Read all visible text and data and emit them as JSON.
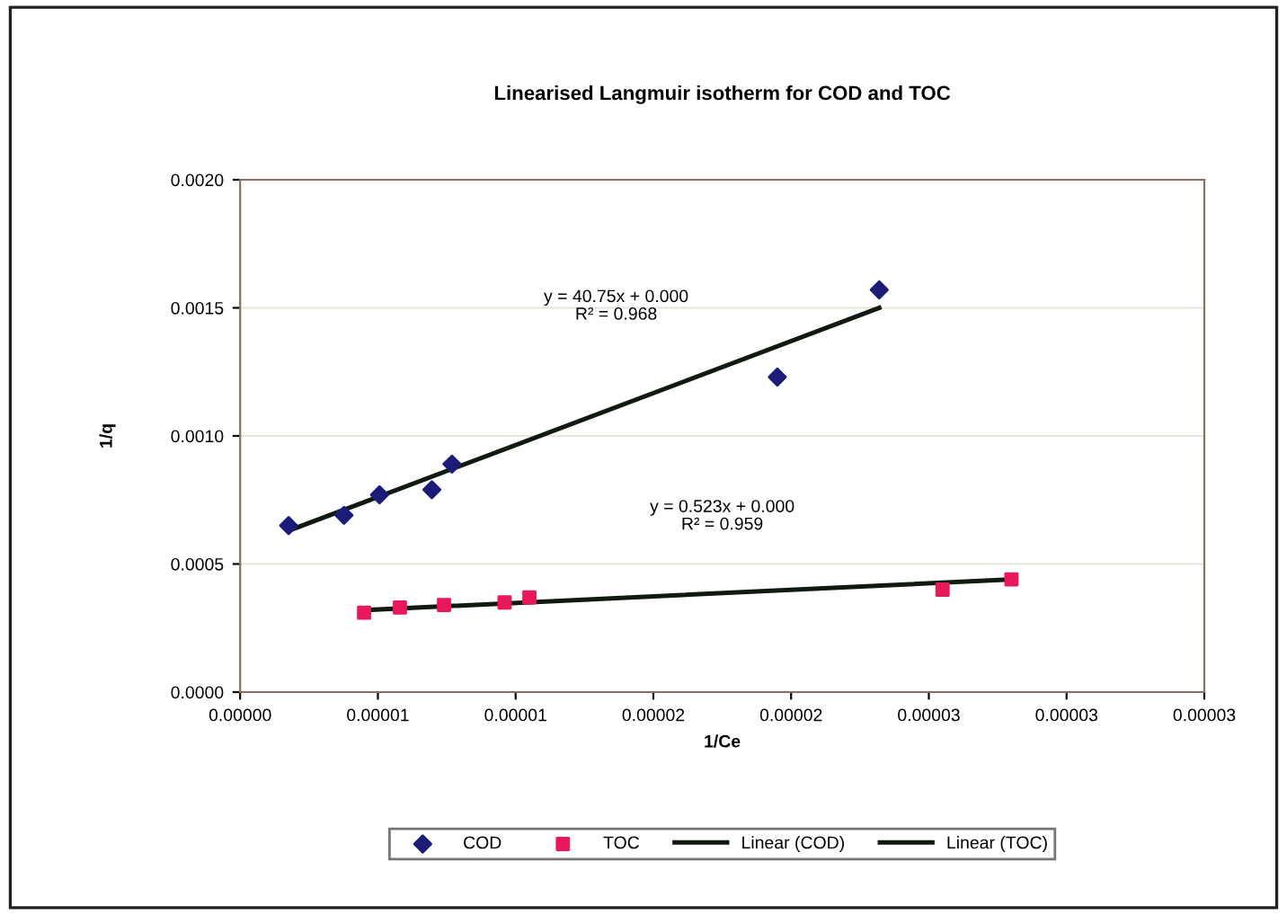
{
  "chart_data": {
    "type": "scatter",
    "title": "Linearised Langmuir isotherm for COD and TOC",
    "xlabel": "1/Ce",
    "ylabel": "1/q",
    "series": [
      {
        "name": "COD",
        "color": "#1c1c78",
        "marker": "diamond",
        "x": [
          1.76e-06,
          3.77e-06,
          5.06e-06,
          6.96e-06,
          7.69e-06,
          1.95e-05,
          2.32e-05
        ],
        "values": [
          0.00065,
          0.00069,
          0.00077,
          0.00079,
          0.00089,
          0.00123,
          0.00157
        ]
      },
      {
        "name": "TOC",
        "color": "#e8185a",
        "marker": "square",
        "x": [
          4.5e-06,
          5.8e-06,
          7.4e-06,
          9.6e-06,
          1.05e-05,
          2.55e-05,
          2.8e-05
        ],
        "values": [
          0.00031,
          0.00033,
          0.00034,
          0.00035,
          0.00037,
          0.0004,
          0.00044
        ]
      },
      {
        "name": "Linear (COD)",
        "type": "line",
        "color": "#101a10",
        "x": [
          1.76e-06,
          2.32e-05
        ],
        "values": [
          0.00063,
          0.0015
        ]
      },
      {
        "name": "Linear (TOC)",
        "type": "line",
        "color": "#101a10",
        "x": [
          4.5e-06,
          2.8e-05
        ],
        "values": [
          0.00032,
          0.00044
        ]
      }
    ],
    "annotations": [
      "y = 40.75x + 0.000\nR² = 0.968",
      "y = 0.523x + 0.000\nR² = 0.959"
    ],
    "xlim": [
      0,
      3.5e-05
    ],
    "ylim": [
      0,
      0.002
    ],
    "xticks": [
      {
        "value": 0,
        "label": "0.00000"
      },
      {
        "value": 5e-06,
        "label": "0.00001"
      },
      {
        "value": 1e-05,
        "label": "0.00001"
      },
      {
        "value": 1.5e-05,
        "label": "0.00002"
      },
      {
        "value": 2e-05,
        "label": "0.00002"
      },
      {
        "value": 2.5e-05,
        "label": "0.00003"
      },
      {
        "value": 3e-05,
        "label": "0.00003"
      },
      {
        "value": 3.5e-05,
        "label": "0.00003"
      }
    ],
    "yticks": [
      {
        "value": 0,
        "label": "0.0000"
      },
      {
        "value": 0.0005,
        "label": "0.0005"
      },
      {
        "value": 0.001,
        "label": "0.0010"
      },
      {
        "value": 0.0015,
        "label": "0.0015"
      },
      {
        "value": 0.002,
        "label": "0.0020"
      }
    ],
    "grid": "y",
    "legend": "bottom"
  }
}
